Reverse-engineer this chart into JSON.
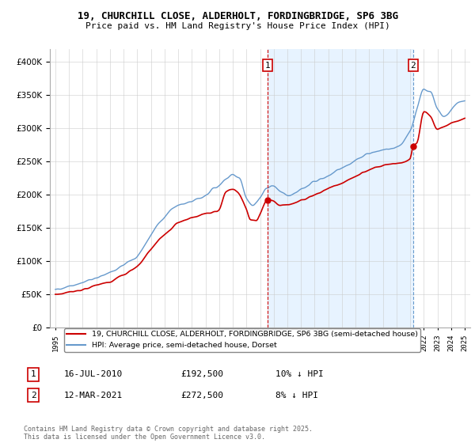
{
  "title_line1": "19, CHURCHILL CLOSE, ALDERHOLT, FORDINGBRIDGE, SP6 3BG",
  "title_line2": "Price paid vs. HM Land Registry's House Price Index (HPI)",
  "red_legend": "19, CHURCHILL CLOSE, ALDERHOLT, FORDINGBRIDGE, SP6 3BG (semi-detached house)",
  "blue_legend": "HPI: Average price, semi-detached house, Dorset",
  "annotation1_date": "16-JUL-2010",
  "annotation1_price": "£192,500",
  "annotation1_hpi": "10% ↓ HPI",
  "annotation2_date": "12-MAR-2021",
  "annotation2_price": "£272,500",
  "annotation2_hpi": "8% ↓ HPI",
  "footnote": "Contains HM Land Registry data © Crown copyright and database right 2025.\nThis data is licensed under the Open Government Licence v3.0.",
  "red_color": "#cc0000",
  "blue_color": "#6699cc",
  "shade_color": "#ddeeff",
  "ylim_min": 0,
  "ylim_max": 420000,
  "background_color": "#ffffff",
  "grid_color": "#cccccc",
  "t1_year": 2010.54,
  "t1_price": 192500,
  "t2_year": 2021.21,
  "t2_price": 272500
}
